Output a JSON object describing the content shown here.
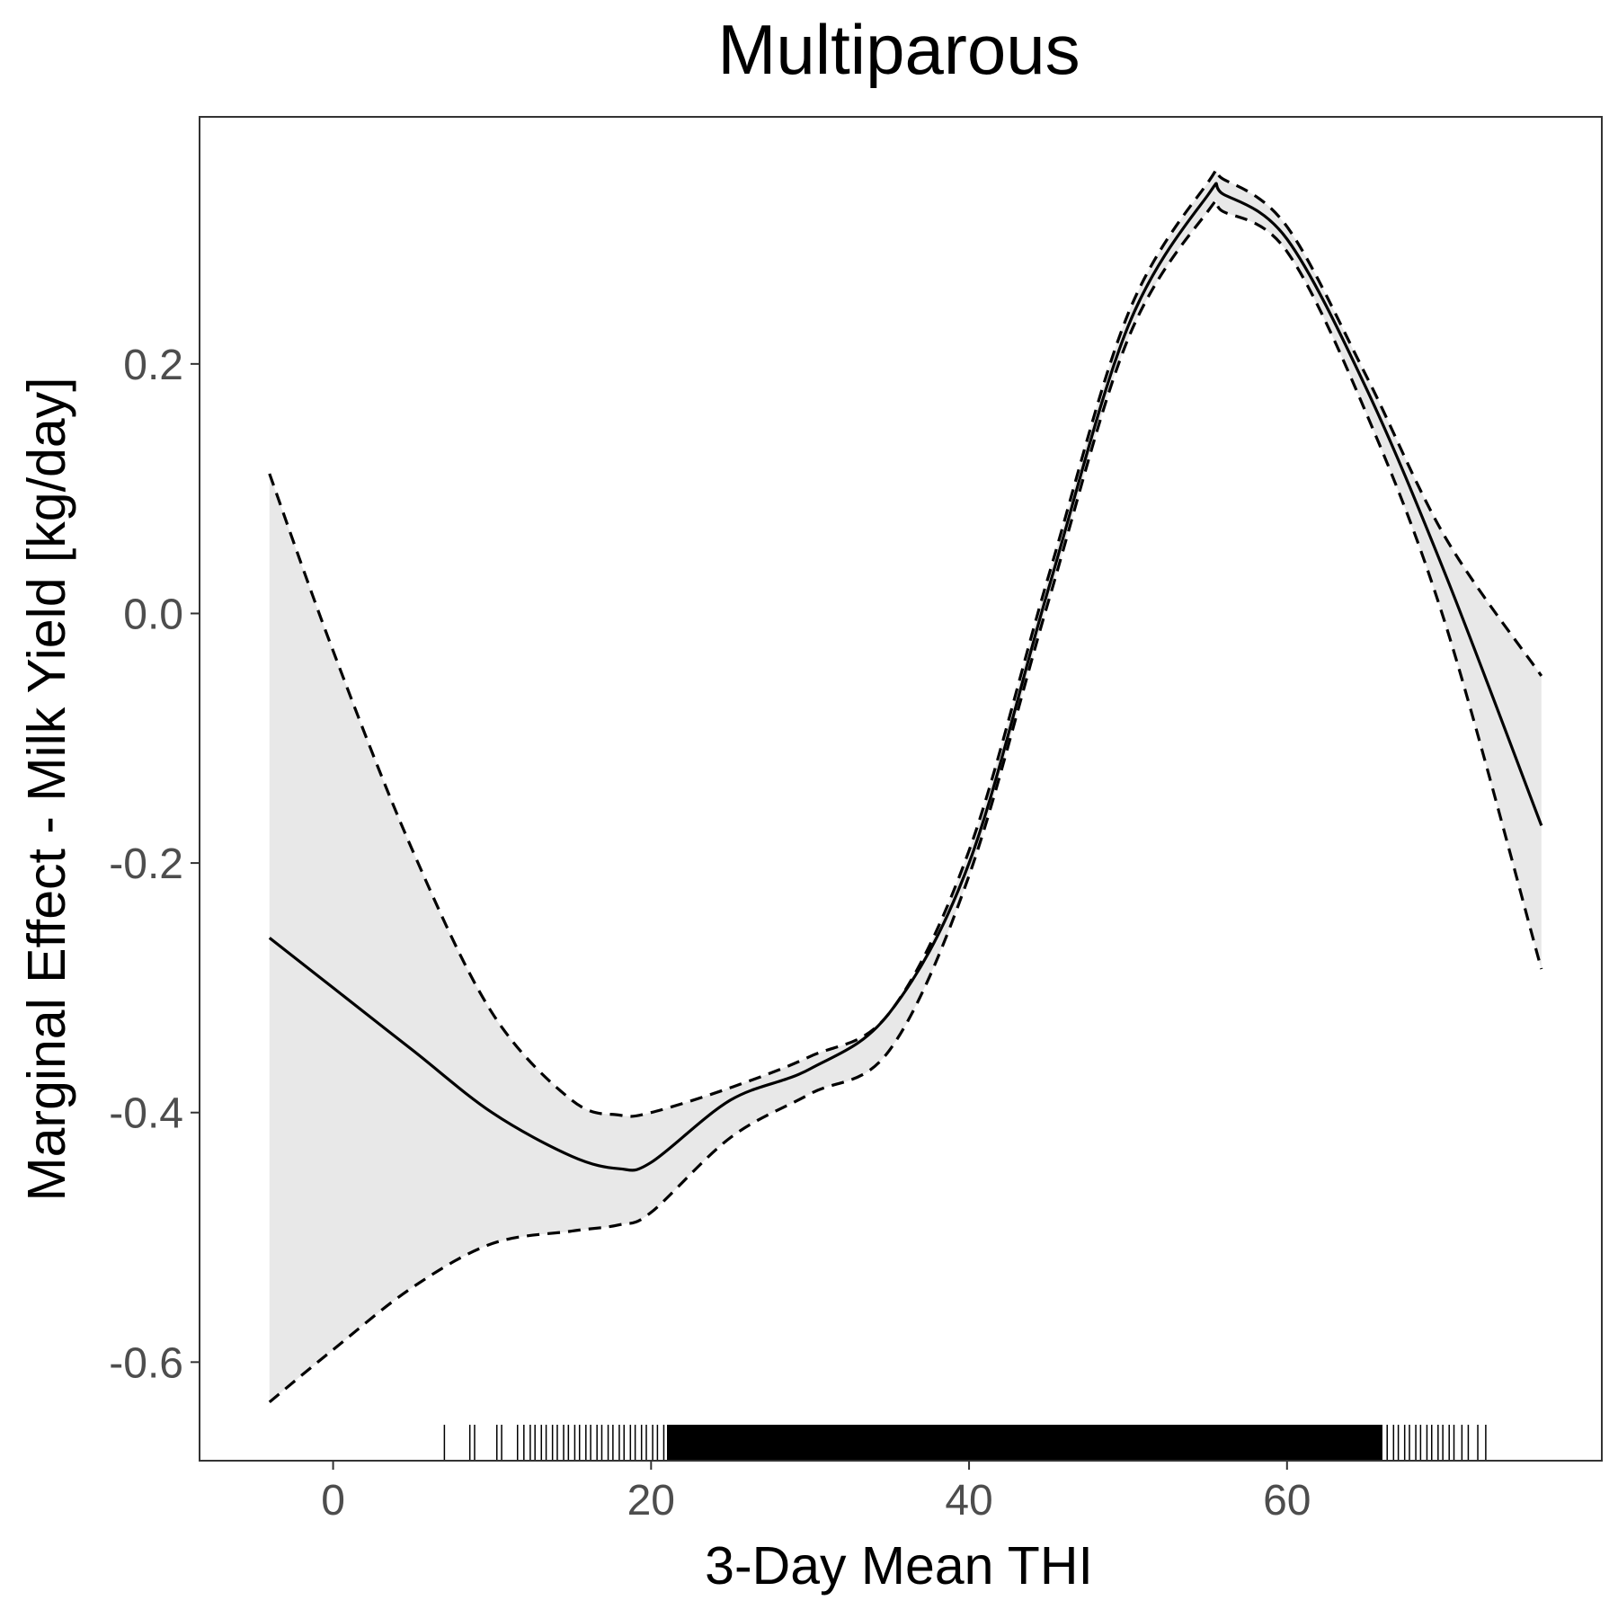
{
  "chart_data": {
    "type": "line",
    "title": "Multiparous",
    "xlabel": "3-Day Mean THI",
    "ylabel": "Marginal Effect - Milk Yield [kg/day]",
    "xlim": [
      -8.4,
      79.8
    ],
    "ylim": [
      -0.679,
      0.398
    ],
    "x_ticks": [
      0,
      20,
      40,
      60
    ],
    "y_ticks": [
      0.2,
      0.0,
      -0.2,
      -0.4,
      -0.6
    ],
    "x_tick_labels": [
      "0",
      "20",
      "40",
      "60"
    ],
    "y_tick_labels": [
      "0.2",
      "0.0",
      "-0.2",
      "-0.4",
      "-0.6"
    ],
    "grid": false,
    "legend": "none",
    "colors": {
      "line": "#000000",
      "ribbon": "#e8e8e8",
      "panel_border": "#333333",
      "tick_text": "#4d4d4d"
    },
    "series": [
      {
        "style": "solid",
        "x": [
          -4,
          0,
          5,
          10,
          15,
          18,
          20,
          25,
          30,
          35,
          40,
          45,
          50,
          55,
          56,
          60,
          65,
          70,
          76
        ],
        "y": [
          -0.26,
          -0.3,
          -0.35,
          -0.4,
          -0.435,
          -0.445,
          -0.44,
          -0.39,
          -0.365,
          -0.32,
          -0.2,
          0.02,
          0.23,
          0.335,
          0.336,
          0.3,
          0.18,
          0.03,
          -0.17
        ]
      },
      {
        "style": "dashed",
        "x": [
          -4,
          0,
          5,
          10,
          15,
          18,
          20,
          25,
          30,
          35,
          40,
          45,
          50,
          55,
          56,
          60,
          65,
          70,
          76
        ],
        "y": [
          0.112,
          -0.03,
          -0.19,
          -0.32,
          -0.39,
          -0.402,
          -0.4,
          -0.38,
          -0.355,
          -0.32,
          -0.19,
          0.03,
          0.24,
          0.345,
          0.348,
          0.31,
          0.19,
          0.06,
          -0.05
        ]
      },
      {
        "style": "dashed",
        "x": [
          -4,
          0,
          5,
          10,
          15,
          18,
          20,
          25,
          30,
          35,
          40,
          45,
          50,
          55,
          56,
          60,
          65,
          70,
          76
        ],
        "y": [
          -0.632,
          -0.59,
          -0.54,
          -0.505,
          -0.495,
          -0.49,
          -0.48,
          -0.42,
          -0.385,
          -0.35,
          -0.21,
          0.01,
          0.22,
          0.322,
          0.322,
          0.29,
          0.16,
          -0.01,
          -0.285
        ]
      }
    ],
    "rug": {
      "min": 7,
      "max": 72.5,
      "dense_min": 21,
      "dense_max": 66,
      "sparse_x": [
        7,
        8.6,
        8.9,
        10.3,
        10.6,
        11.6,
        12.0,
        12.4,
        12.7,
        13.1,
        13.4,
        13.8,
        14.1,
        14.5,
        14.8,
        15.2,
        15.5,
        15.9,
        16.2,
        16.6,
        16.9,
        17.3,
        17.6,
        18.0,
        18.3,
        18.7,
        19.0,
        19.4,
        19.7,
        20.1,
        20.4,
        20.8,
        66.3,
        66.7,
        67.0,
        67.4,
        67.7,
        68.1,
        68.4,
        68.8,
        69.1,
        69.5,
        69.8,
        70.2,
        70.5,
        71.0,
        71.4,
        72.0,
        72.5
      ]
    }
  }
}
